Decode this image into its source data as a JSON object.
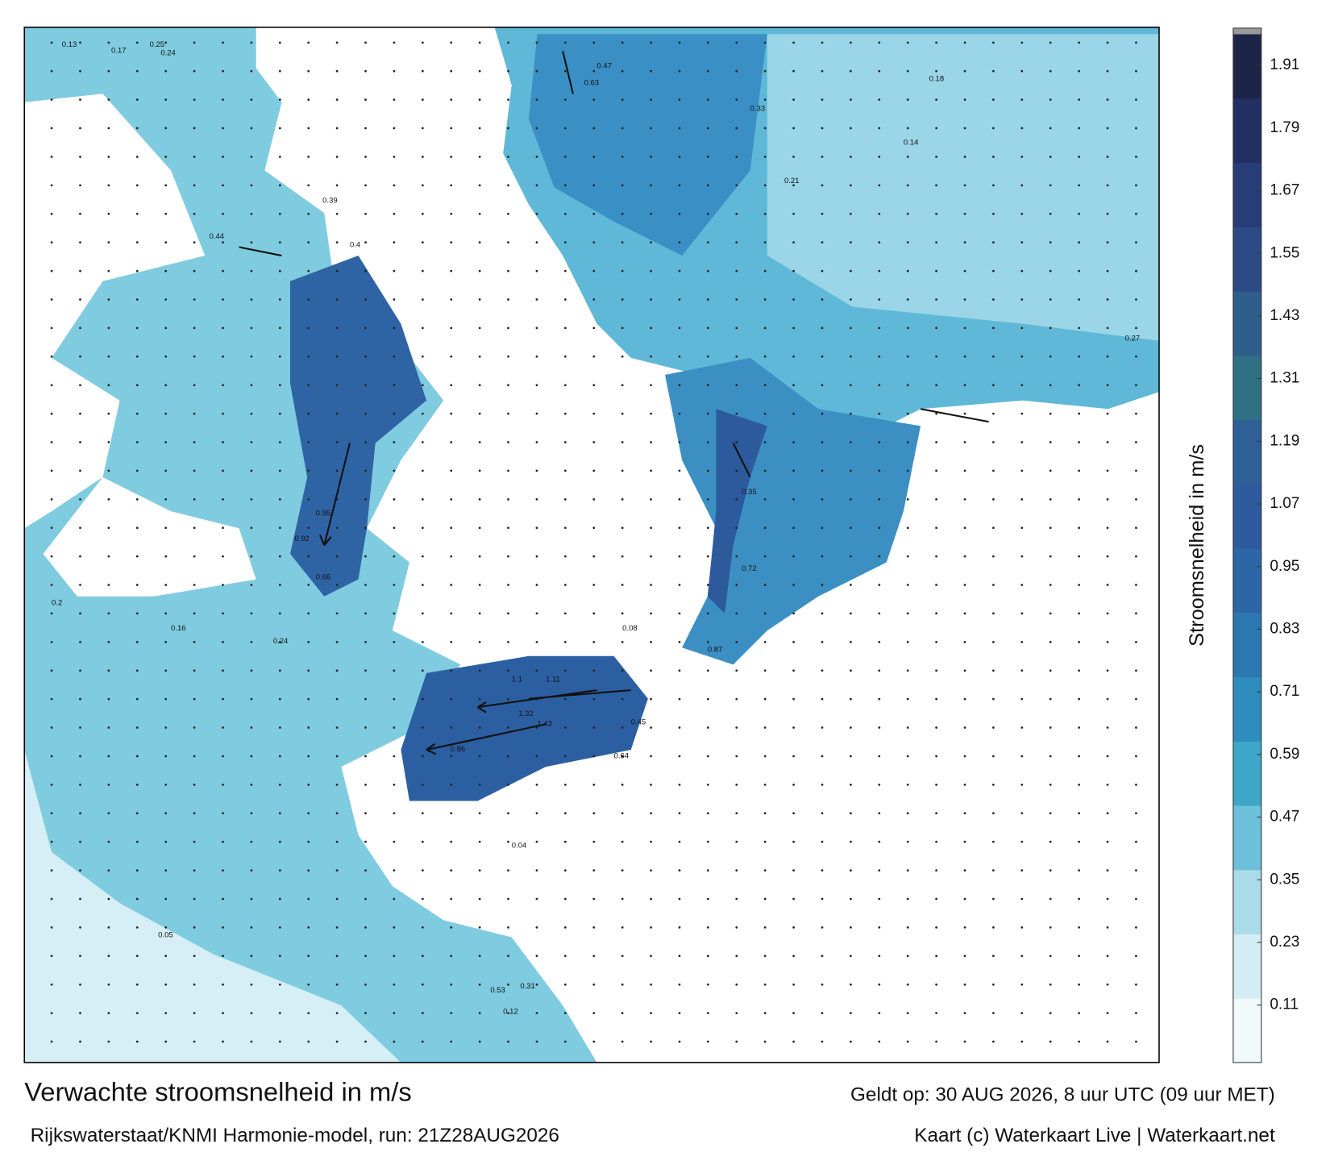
{
  "title": "Verwachte stroomsnelheid in m/s",
  "subtitle": "Rijkswaterstaat/KNMI Harmonie-model, run: 21Z28AUG2026",
  "valid": "Geldt op: 30 AUG 2026, 8 uur UTC (09 uur MET)",
  "credit": "Kaart (c) Waterkaart Live | Waterkaart.net",
  "colorbar": {
    "label": "Stroomsnelheid in m/s",
    "lim": [
      0,
      1.97
    ],
    "ticks": [
      0.11,
      0.23,
      0.35,
      0.47,
      0.59,
      0.71,
      0.83,
      0.95,
      1.07,
      1.19,
      1.31,
      1.43,
      1.55,
      1.67,
      1.79,
      1.91
    ],
    "colors": [
      "#f2f9fb",
      "#d3edf4",
      "#a9dbe9",
      "#6cc0d9",
      "#3ea6c8",
      "#2e8dbd",
      "#2b78b0",
      "#2c66a6",
      "#2e5b9d",
      "#2f5f97",
      "#2f7084",
      "#2e5f8a",
      "#2b4a86",
      "#273d78",
      "#222f63",
      "#1c2548"
    ]
  },
  "map_labels": [
    "0.13",
    "0.17",
    "0.25",
    "0.24",
    "0.39",
    "0.4",
    "0.47",
    "0.63",
    "0.33",
    "0.21",
    "0.14",
    "0.18",
    "0.27",
    "0.44",
    "0.95",
    "0.92",
    "0.66",
    "1.1",
    "1.11",
    "1.43",
    "1.32",
    "0.86",
    "0.64",
    "0.45",
    "0.87",
    "0.72",
    "0.35",
    "0.24",
    "0.16",
    "0.05",
    "0.2",
    "0.53",
    "0.31",
    "0.12",
    "0.08",
    "0.04"
  ]
}
